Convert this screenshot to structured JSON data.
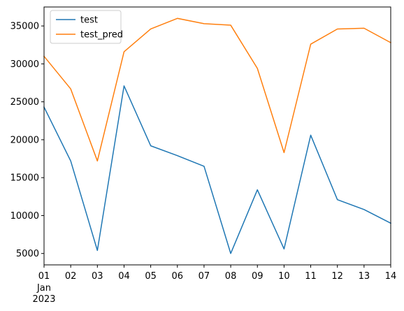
{
  "chart_data": {
    "type": "line",
    "x": [
      "01",
      "02",
      "03",
      "04",
      "05",
      "06",
      "07",
      "08",
      "09",
      "10",
      "11",
      "12",
      "13",
      "14"
    ],
    "x_sublabels": [
      "Jan",
      "2023"
    ],
    "series": [
      {
        "name": "test",
        "color": "#1f77b4",
        "values": [
          24300,
          17200,
          5400,
          27100,
          19200,
          17900,
          16500,
          5000,
          13400,
          5600,
          20600,
          12100,
          10800,
          9000
        ]
      },
      {
        "name": "test_pred",
        "color": "#ff7f0e",
        "values": [
          31000,
          26700,
          17200,
          31600,
          34600,
          36000,
          35300,
          35100,
          29400,
          18300,
          32600,
          34600,
          34700,
          32800
        ]
      }
    ],
    "yticks": [
      5000,
      10000,
      15000,
      20000,
      25000,
      30000,
      35000
    ],
    "ylim": [
      3500,
      37500
    ],
    "title": "",
    "xlabel": "",
    "ylabel": "",
    "legend_position": "top-left",
    "grid": false
  }
}
